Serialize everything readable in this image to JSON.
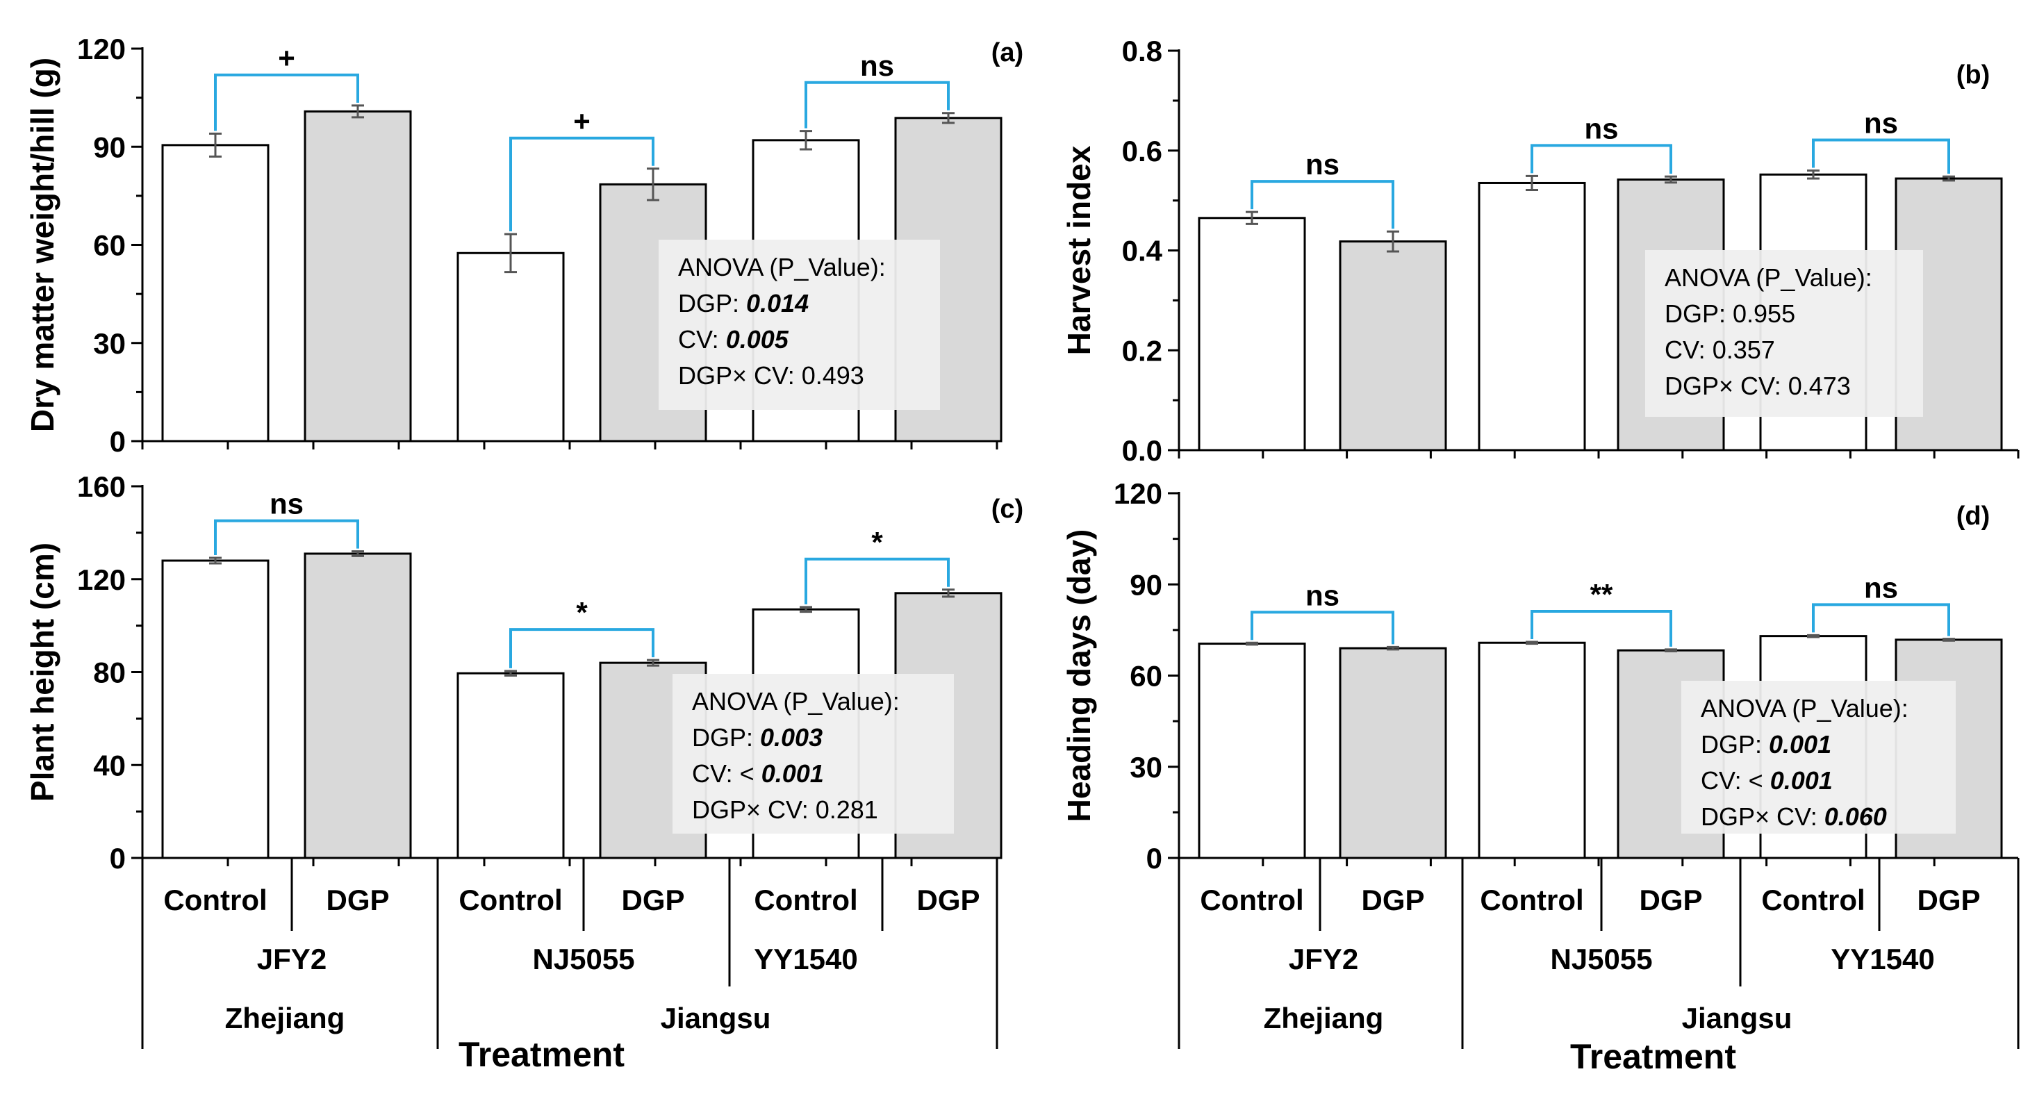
{
  "colors": {
    "control_fill": "#ffffff",
    "dgp_fill": "#d9d9d9",
    "bar_edge": "#000000",
    "bracket": "#29a8e0",
    "error_bar": "#555555",
    "anova_box": "#efefef"
  },
  "groups": [
    {
      "treatments": [
        "Control",
        "DGP"
      ],
      "cultivar": "JFY2",
      "region": "Zhejiang"
    },
    {
      "treatments": [
        "Control",
        "DGP"
      ],
      "cultivar": "NJ5055",
      "region": "Jiangsu"
    },
    {
      "treatments": [
        "Control",
        "DGP"
      ],
      "cultivar": "YY1540",
      "region": "Jiangsu"
    }
  ],
  "regions": [
    "Zhejiang",
    "Jiangsu"
  ],
  "treatment_label": "Treatment",
  "chart_data": [
    {
      "type": "bar",
      "panel": "(a)",
      "ylabel": "Dry matter weight/hill (g)",
      "ylim": [
        0,
        120
      ],
      "yticks": [
        0,
        30,
        60,
        90,
        120
      ],
      "ytick_labels": [
        "0",
        "30",
        "60",
        "90",
        "120"
      ],
      "categories": [
        "JFY2 Control",
        "JFY2 DGP",
        "NJ5055 Control",
        "NJ5055 DGP",
        "YY1540 Control",
        "YY1540 DGP"
      ],
      "values": [
        90.5,
        100.8,
        57.5,
        78.5,
        92.0,
        98.8
      ],
      "errors": [
        3.5,
        1.8,
        5.8,
        4.8,
        2.8,
        1.5
      ],
      "significance": [
        "+",
        "+",
        "ns"
      ],
      "anova": {
        "title": "ANOVA (P_Value):",
        "lines": [
          {
            "label": "DGP: ",
            "value": "0.014",
            "emph": true
          },
          {
            "label": "CV: ",
            "value": "0.005",
            "emph": true
          },
          {
            "label": "DGP× CV: ",
            "value": "0.493",
            "emph": false
          }
        ]
      }
    },
    {
      "type": "bar",
      "panel": "(b)",
      "ylabel": "Harvest index",
      "ylim": [
        0,
        0.8
      ],
      "yticks": [
        0,
        0.2,
        0.4,
        0.6,
        0.8
      ],
      "ytick_labels": [
        "0.0",
        "0.2",
        "0.4",
        "0.6",
        "0.8"
      ],
      "categories": [
        "JFY2 Control",
        "JFY2 DGP",
        "NJ5055 Control",
        "NJ5055 DGP",
        "YY1540 Control",
        "YY1540 DGP"
      ],
      "values": [
        0.465,
        0.418,
        0.535,
        0.542,
        0.552,
        0.544
      ],
      "errors": [
        0.012,
        0.02,
        0.014,
        0.006,
        0.008,
        0.004
      ],
      "significance": [
        "ns",
        "ns",
        "ns"
      ],
      "anova": {
        "title": "ANOVA (P_Value):",
        "lines": [
          {
            "label": "DGP: ",
            "value": "0.955",
            "emph": false
          },
          {
            "label": "CV: ",
            "value": "0.357",
            "emph": false
          },
          {
            "label": "DGP× CV: ",
            "value": "0.473",
            "emph": false
          }
        ]
      }
    },
    {
      "type": "bar",
      "panel": "(c)",
      "ylabel": "Plant height (cm)",
      "ylim": [
        0,
        160
      ],
      "yticks": [
        0,
        40,
        80,
        120,
        160
      ],
      "ytick_labels": [
        "0",
        "40",
        "80",
        "120",
        "160"
      ],
      "categories": [
        "JFY2 Control",
        "JFY2 DGP",
        "NJ5055 Control",
        "NJ5055 DGP",
        "YY1540 Control",
        "YY1540 DGP"
      ],
      "values": [
        128,
        131,
        79.5,
        84,
        107,
        114
      ],
      "errors": [
        1.2,
        1.0,
        1.0,
        1.2,
        1.0,
        1.5
      ],
      "significance": [
        "ns",
        "*",
        "*"
      ],
      "anova": {
        "title": "ANOVA (P_Value):",
        "lines": [
          {
            "label": "DGP: ",
            "value": "0.003",
            "emph": true
          },
          {
            "label": "CV:  < ",
            "value": "0.001",
            "emph": true
          },
          {
            "label": "DGP× CV: ",
            "value": "0.281",
            "emph": false
          }
        ]
      }
    },
    {
      "type": "bar",
      "panel": "(d)",
      "ylabel": "Heading days  (day)",
      "ylim": [
        0,
        120
      ],
      "yticks": [
        0,
        30,
        60,
        90,
        120
      ],
      "ytick_labels": [
        "0",
        "30",
        "60",
        "90",
        "120"
      ],
      "categories": [
        "JFY2 Control",
        "JFY2 DGP",
        "NJ5055 Control",
        "NJ5055 DGP",
        "YY1540 Control",
        "YY1540 DGP"
      ],
      "values": [
        70.5,
        69.0,
        70.8,
        68.3,
        73.0,
        71.8
      ],
      "errors": [
        0.3,
        0.4,
        0.3,
        0.3,
        0.3,
        0.3
      ],
      "significance": [
        "ns",
        "**",
        "ns"
      ],
      "anova": {
        "title": "ANOVA (P_Value):",
        "lines": [
          {
            "label": "DGP: ",
            "value": "0.001",
            "emph": true
          },
          {
            "label": "CV:  < ",
            "value": "0.001",
            "emph": true
          },
          {
            "label": "DGP× CV: ",
            "value": "0.060",
            "emph": true
          }
        ]
      }
    }
  ]
}
